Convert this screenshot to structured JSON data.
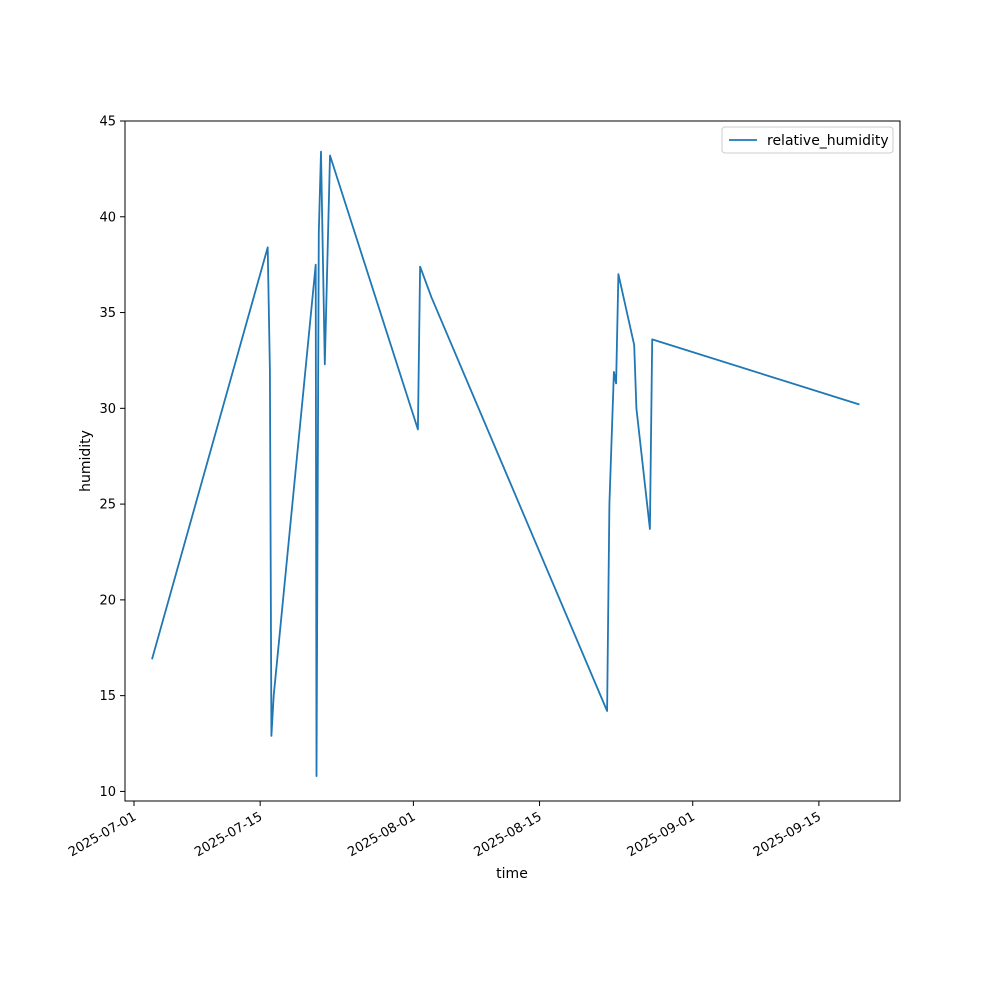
{
  "chart_data": {
    "type": "line",
    "xlabel": "time",
    "ylabel": "humidity",
    "x_axis_type": "date",
    "xlim": [
      "2025-06-30",
      "2025-09-24"
    ],
    "ylim": [
      9.5,
      45
    ],
    "x_ticks": [
      "2025-07-01",
      "2025-07-15",
      "2025-08-01",
      "2025-08-15",
      "2025-09-01",
      "2025-09-15"
    ],
    "y_ticks": [
      10,
      15,
      20,
      25,
      30,
      35,
      40,
      45
    ],
    "grid": false,
    "legend": {
      "placement": "upper right",
      "entries": [
        "relative_humidity"
      ]
    },
    "colors": {
      "series": "#1f77b4",
      "axes": "#000000",
      "background": "#ffffff"
    },
    "series": [
      {
        "name": "relative_humidity",
        "points": [
          {
            "x": "2025-07-03 00:00",
            "y": 16.9
          },
          {
            "x": "2025-07-15 20:00",
            "y": 38.4
          },
          {
            "x": "2025-07-16 02:00",
            "y": 32.0
          },
          {
            "x": "2025-07-16 06:00",
            "y": 12.9
          },
          {
            "x": "2025-07-16 12:00",
            "y": 15.0
          },
          {
            "x": "2025-07-21 04:00",
            "y": 37.5
          },
          {
            "x": "2025-07-21 06:00",
            "y": 10.8
          },
          {
            "x": "2025-07-21 12:00",
            "y": 39.2
          },
          {
            "x": "2025-07-21 18:00",
            "y": 43.4
          },
          {
            "x": "2025-07-22 04:00",
            "y": 32.3
          },
          {
            "x": "2025-07-22 18:00",
            "y": 43.2
          },
          {
            "x": "2025-08-01 12:00",
            "y": 28.9
          },
          {
            "x": "2025-08-01 18:00",
            "y": 37.4
          },
          {
            "x": "2025-08-03 00:00",
            "y": 35.8
          },
          {
            "x": "2025-08-22 12:00",
            "y": 14.2
          },
          {
            "x": "2025-08-22 18:00",
            "y": 25.0
          },
          {
            "x": "2025-08-23 06:00",
            "y": 31.9
          },
          {
            "x": "2025-08-23 12:00",
            "y": 31.3
          },
          {
            "x": "2025-08-23 18:00",
            "y": 37.0
          },
          {
            "x": "2025-08-25 12:00",
            "y": 33.3
          },
          {
            "x": "2025-08-25 18:00",
            "y": 30.0
          },
          {
            "x": "2025-08-27 06:00",
            "y": 23.7
          },
          {
            "x": "2025-08-27 12:00",
            "y": 33.6
          },
          {
            "x": "2025-09-19 12:00",
            "y": 30.2
          }
        ]
      }
    ]
  }
}
